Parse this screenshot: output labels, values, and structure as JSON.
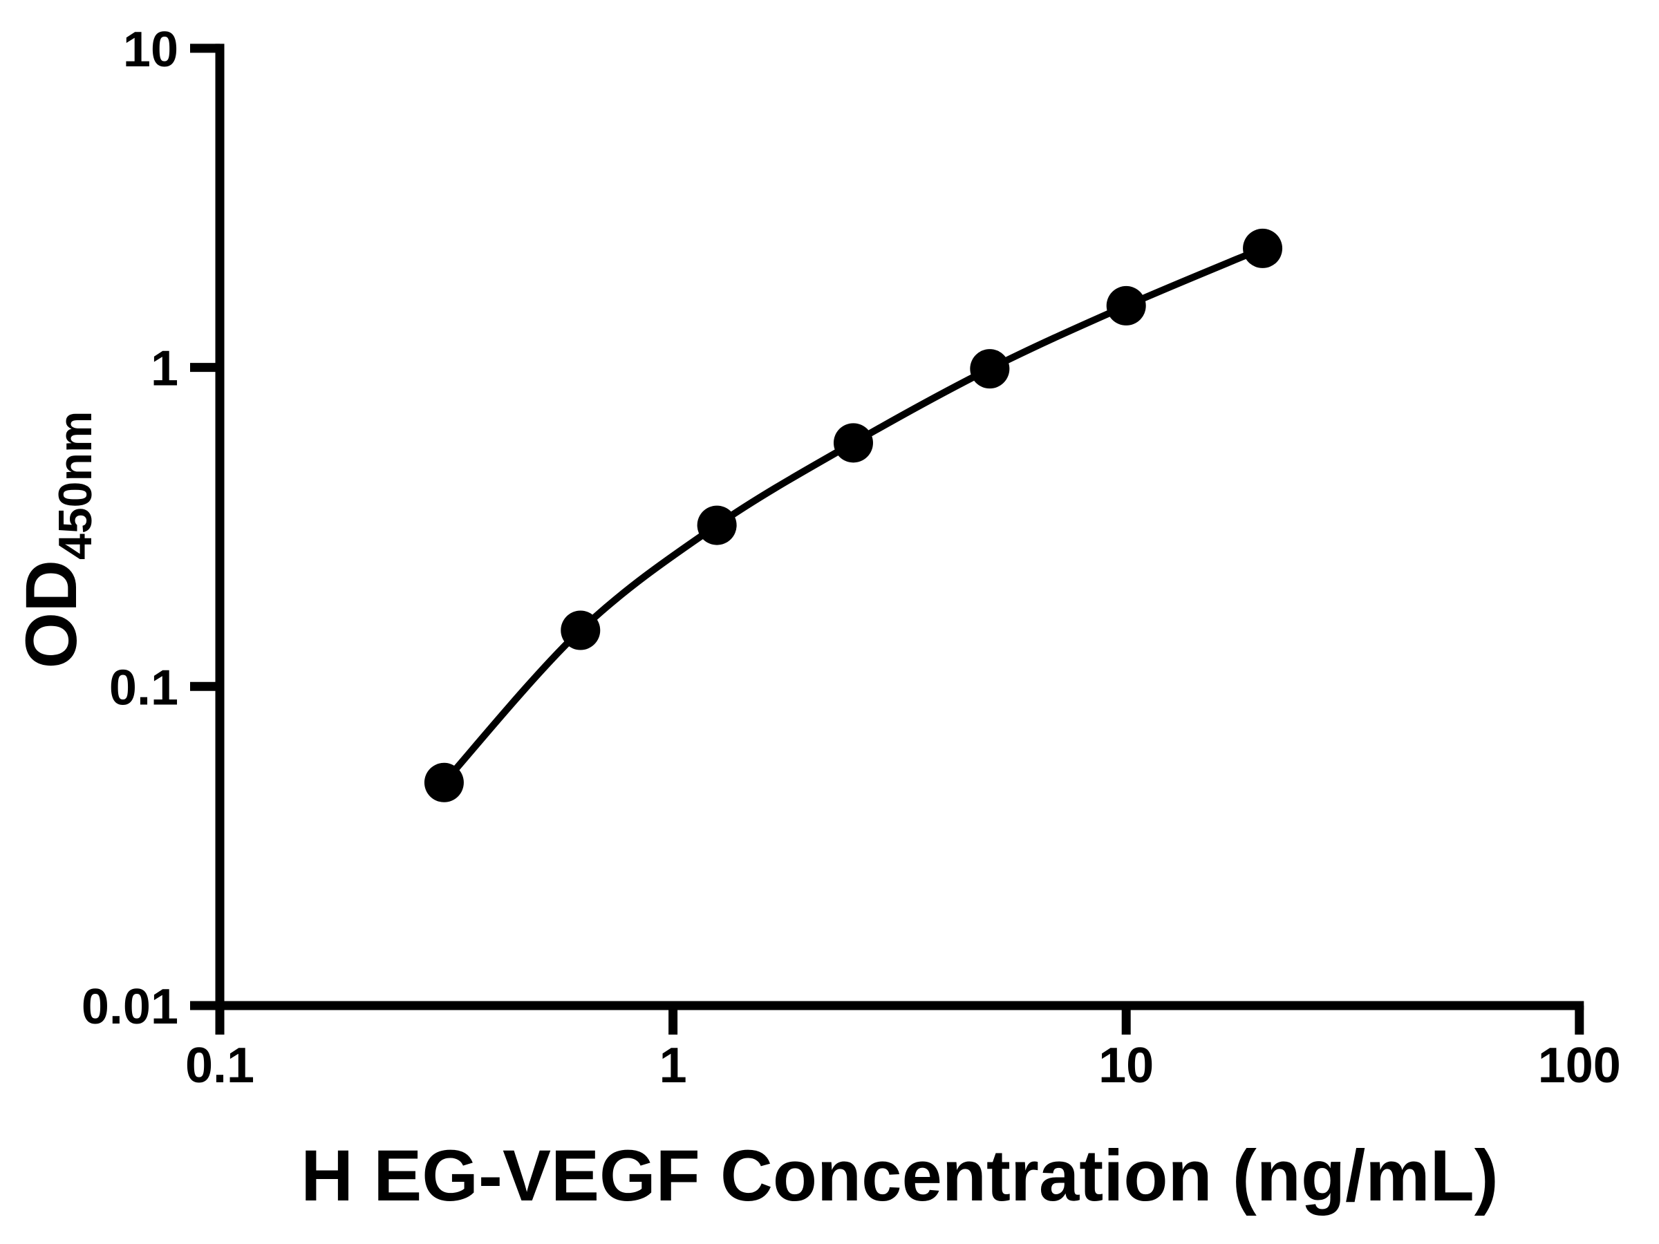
{
  "figure": {
    "background": "#ffffff",
    "foreground": "#000000"
  },
  "chart_data": {
    "type": "scatter",
    "title": "",
    "xlabel": "H EG-VEGF Concentration (ng/mL)",
    "ylabel_main": "OD",
    "ylabel_sub": "450nm",
    "x_scale": "log",
    "y_scale": "log",
    "xlim": [
      0.1,
      100
    ],
    "ylim": [
      0.01,
      10
    ],
    "grid": false,
    "legend": "none",
    "marker_shape": "filled-circle",
    "marker_color": "#000000",
    "line_color": "#000000",
    "x": [
      0.3125,
      0.625,
      1.25,
      2.5,
      5,
      10,
      20
    ],
    "y": [
      0.05,
      0.15,
      0.32,
      0.58,
      0.99,
      1.56,
      2.36
    ],
    "x_ticks": [
      {
        "value": 0.1,
        "label": "0.1"
      },
      {
        "value": 1,
        "label": "1"
      },
      {
        "value": 10,
        "label": "10"
      },
      {
        "value": 100,
        "label": "100"
      }
    ],
    "y_ticks": [
      {
        "value": 10,
        "label": "10"
      },
      {
        "value": 1,
        "label": "1"
      },
      {
        "value": 0.1,
        "label": "0.1"
      },
      {
        "value": 0.01,
        "label": "0.01"
      }
    ]
  }
}
